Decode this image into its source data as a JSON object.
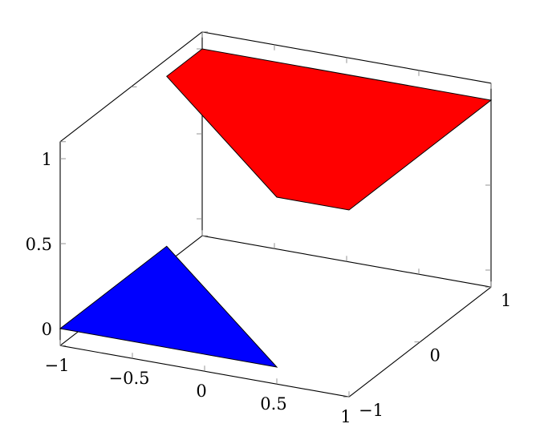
{
  "chart_data": {
    "type": "3d-patch",
    "title": "",
    "xlabel": "",
    "ylabel": "",
    "zlabel": "",
    "xlim": [
      -1,
      1
    ],
    "ylim": [
      -1,
      1
    ],
    "zlim": [
      -0.1,
      1.1
    ],
    "x_ticks": [
      "−1",
      "−0.5",
      "0",
      "0.5",
      "1"
    ],
    "x_tick_values": [
      -1,
      -0.5,
      0,
      0.5,
      1
    ],
    "y_ticks": [
      "−1",
      "0",
      "1"
    ],
    "y_tick_values": [
      -1,
      0,
      1
    ],
    "z_ticks": [
      "0",
      "0.5",
      "1"
    ],
    "z_tick_values": [
      0,
      0.5,
      1
    ],
    "grid": false,
    "series": [
      {
        "color": "#0000ff",
        "points": [
          [
            -1,
            -1,
            0
          ],
          [
            0.5,
            -1,
            0
          ],
          [
            -1,
            0.5,
            0
          ]
        ]
      },
      {
        "color": "#ff0000",
        "points": [
          [
            -1,
            0.5,
            1
          ],
          [
            -1,
            1,
            1
          ],
          [
            1,
            1,
            1
          ],
          [
            1,
            -1,
            1
          ],
          [
            0.5,
            -1,
            1
          ]
        ]
      }
    ]
  }
}
